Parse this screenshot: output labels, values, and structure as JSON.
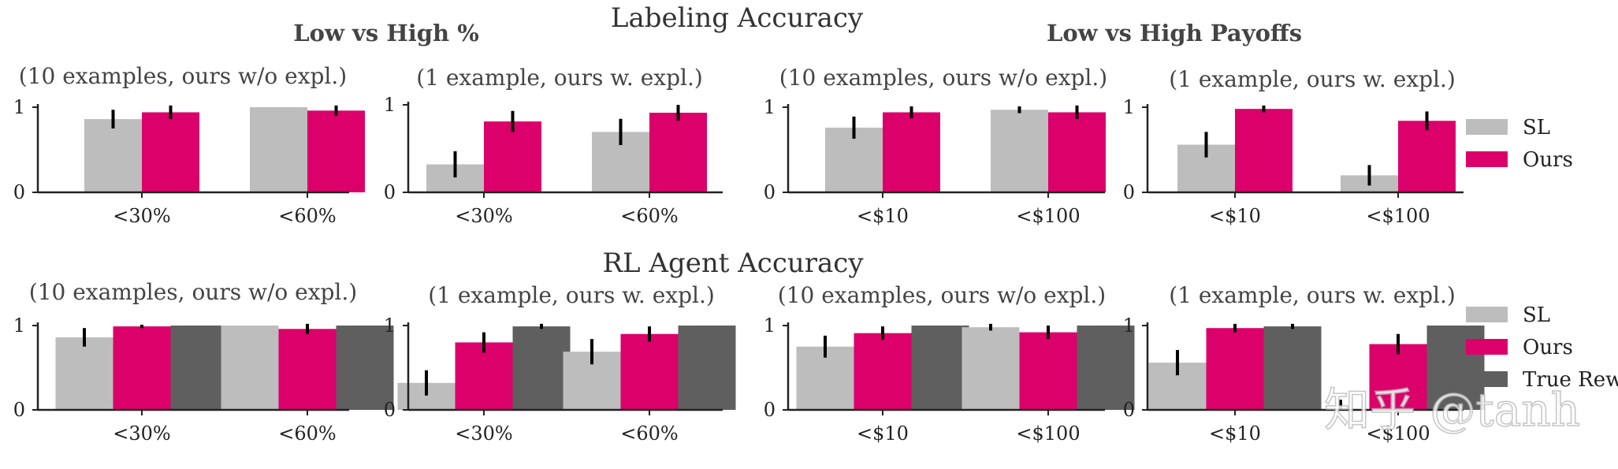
{
  "titles": {
    "labeling": "Labeling Accuracy",
    "rl": "RL Agent Accuracy",
    "group_left": "Low vs High %",
    "group_right": "Low vs High Payoffs"
  },
  "watermark": "知乎 @tanh",
  "colors": {
    "SL": "#bdbdbd",
    "Ours": "#dc006a",
    "True Reward": "#5f5f5f",
    "axis": "#222222",
    "error": "#000000"
  },
  "legend_top": [
    "SL",
    "Ours"
  ],
  "legend_bottom": [
    "SL",
    "Ours",
    "True Reward"
  ],
  "chart_data": [
    {
      "type": "bar",
      "row": "labeling",
      "title": "(10 examples, ours w/o expl.)",
      "categories": [
        "<30%",
        "<60%"
      ],
      "ylim": [
        0,
        1
      ],
      "yticks": [
        "0",
        "1"
      ],
      "series": [
        {
          "name": "SL",
          "values": [
            0.86,
            1.0
          ],
          "err": [
            0.11,
            0.0
          ]
        },
        {
          "name": "Ours",
          "values": [
            0.94,
            0.96
          ],
          "err": [
            0.08,
            0.06
          ]
        }
      ]
    },
    {
      "type": "bar",
      "row": "labeling",
      "title": "(1 example, ours w. expl.)",
      "categories": [
        "<30%",
        "<60%"
      ],
      "ylim": [
        0,
        1
      ],
      "yticks": [
        "0",
        "1"
      ],
      "series": [
        {
          "name": "SL",
          "values": [
            0.32,
            0.69
          ],
          "err": [
            0.15,
            0.15
          ]
        },
        {
          "name": "Ours",
          "values": [
            0.81,
            0.91
          ],
          "err": [
            0.12,
            0.09
          ]
        }
      ]
    },
    {
      "type": "bar",
      "row": "labeling",
      "title": "(10 examples, ours w/o expl.)",
      "categories": [
        "<$10",
        "<$100"
      ],
      "ylim": [
        0,
        1
      ],
      "yticks": [
        "0",
        "1"
      ],
      "series": [
        {
          "name": "SL",
          "values": [
            0.76,
            0.97
          ],
          "err": [
            0.13,
            0.04
          ]
        },
        {
          "name": "Ours",
          "values": [
            0.94,
            0.94
          ],
          "err": [
            0.07,
            0.08
          ]
        }
      ]
    },
    {
      "type": "bar",
      "row": "labeling",
      "title": "(1 example, ours w. expl.)",
      "categories": [
        "<$10",
        "<$100"
      ],
      "ylim": [
        0,
        1
      ],
      "yticks": [
        "0",
        "1"
      ],
      "series": [
        {
          "name": "SL",
          "values": [
            0.56,
            0.2
          ],
          "err": [
            0.15,
            0.12
          ]
        },
        {
          "name": "Ours",
          "values": [
            0.98,
            0.84
          ],
          "err": [
            0.04,
            0.11
          ]
        }
      ]
    },
    {
      "type": "bar",
      "row": "rl",
      "title": "(10 examples, ours w/o expl.)",
      "categories": [
        "<30%",
        "<60%"
      ],
      "ylim": [
        0,
        1
      ],
      "yticks": [
        "0",
        "1"
      ],
      "series": [
        {
          "name": "SL",
          "values": [
            0.86,
            1.0
          ],
          "err": [
            0.11,
            0.0
          ]
        },
        {
          "name": "Ours",
          "values": [
            0.99,
            0.96
          ],
          "err": [
            0.02,
            0.06
          ]
        },
        {
          "name": "True Reward",
          "values": [
            1.0,
            1.0
          ],
          "err": [
            0,
            0
          ]
        }
      ]
    },
    {
      "type": "bar",
      "row": "rl",
      "title": "(1 example, ours w. expl.)",
      "categories": [
        "<30%",
        "<60%"
      ],
      "ylim": [
        0,
        1
      ],
      "yticks": [
        "0",
        "1"
      ],
      "series": [
        {
          "name": "SL",
          "values": [
            0.32,
            0.69
          ],
          "err": [
            0.15,
            0.15
          ]
        },
        {
          "name": "Ours",
          "values": [
            0.8,
            0.9
          ],
          "err": [
            0.12,
            0.09
          ]
        },
        {
          "name": "True Reward",
          "values": [
            0.99,
            1.0
          ],
          "err": [
            0.03,
            0
          ]
        }
      ]
    },
    {
      "type": "bar",
      "row": "rl",
      "title": "(10 examples, ours w/o expl.)",
      "categories": [
        "<$10",
        "<$100"
      ],
      "ylim": [
        0,
        1
      ],
      "yticks": [
        "0",
        "1"
      ],
      "series": [
        {
          "name": "SL",
          "values": [
            0.75,
            0.98
          ],
          "err": [
            0.13,
            0.04
          ]
        },
        {
          "name": "Ours",
          "values": [
            0.91,
            0.92
          ],
          "err": [
            0.08,
            0.08
          ]
        },
        {
          "name": "True Reward",
          "values": [
            1.0,
            1.0
          ],
          "err": [
            0,
            0
          ]
        }
      ]
    },
    {
      "type": "bar",
      "row": "rl",
      "title": "(1 example, ours w. expl.)",
      "categories": [
        "<$10",
        "<$100"
      ],
      "ylim": [
        0,
        1
      ],
      "yticks": [
        "0",
        "1"
      ],
      "series": [
        {
          "name": "SL",
          "values": [
            0.56,
            0.0
          ],
          "err": [
            0.15,
            0.12
          ]
        },
        {
          "name": "Ours",
          "values": [
            0.97,
            0.78
          ],
          "err": [
            0.05,
            0.12
          ]
        },
        {
          "name": "True Reward",
          "values": [
            0.99,
            1.0
          ],
          "err": [
            0.03,
            0
          ]
        }
      ]
    }
  ]
}
